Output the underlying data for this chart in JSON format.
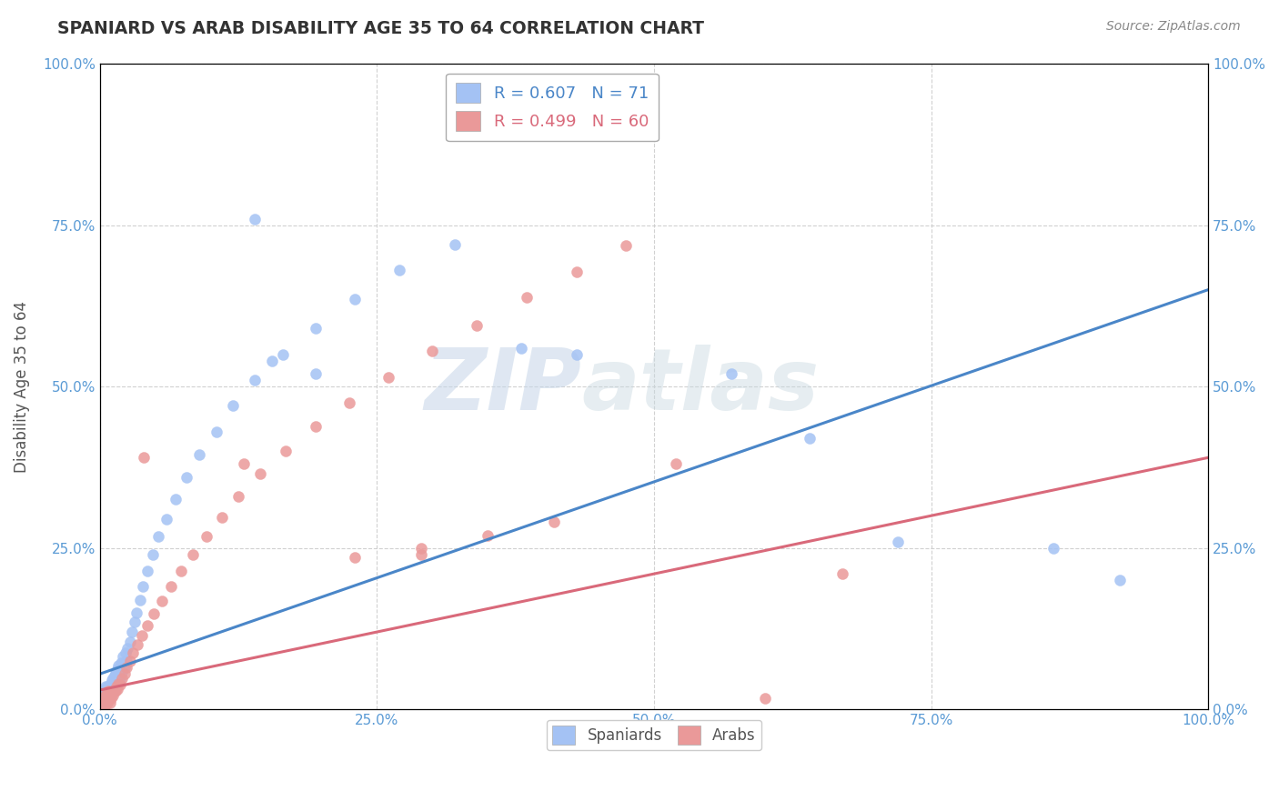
{
  "title": "SPANIARD VS ARAB DISABILITY AGE 35 TO 64 CORRELATION CHART",
  "source": "Source: ZipAtlas.com",
  "ylabel": "Disability Age 35 to 64",
  "xlim": [
    0,
    1.0
  ],
  "ylim": [
    0,
    1.0
  ],
  "xticks": [
    0.0,
    0.25,
    0.5,
    0.75,
    1.0
  ],
  "yticks": [
    0.0,
    0.25,
    0.5,
    0.75,
    1.0
  ],
  "xticklabels": [
    "0.0%",
    "25.0%",
    "50.0%",
    "75.0%",
    "100.0%"
  ],
  "yticklabels": [
    "0.0%",
    "25.0%",
    "50.0%",
    "75.0%",
    "100.0%"
  ],
  "spaniards_color": "#a4c2f4",
  "arabs_color": "#ea9999",
  "spaniards_line_color": "#4a86c8",
  "arabs_line_color": "#d9697a",
  "R_spaniards": 0.607,
  "N_spaniards": 71,
  "R_arabs": 0.499,
  "N_arabs": 60,
  "title_color": "#333333",
  "axis_label_color": "#555555",
  "tick_color": "#5b9bd5",
  "grid_color": "#cccccc",
  "background_color": "#ffffff",
  "watermark_color": "#d0dce8",
  "legend_line_color": "#4a86c8",
  "legend_line2_color": "#d9697a",
  "sp_x": [
    0.002,
    0.003,
    0.003,
    0.004,
    0.004,
    0.005,
    0.005,
    0.005,
    0.006,
    0.006,
    0.007,
    0.007,
    0.008,
    0.008,
    0.009,
    0.009,
    0.01,
    0.01,
    0.011,
    0.011,
    0.012,
    0.012,
    0.013,
    0.013,
    0.014,
    0.014,
    0.015,
    0.015,
    0.016,
    0.016,
    0.017,
    0.017,
    0.018,
    0.019,
    0.02,
    0.021,
    0.022,
    0.023,
    0.024,
    0.025,
    0.027,
    0.029,
    0.031,
    0.033,
    0.036,
    0.039,
    0.043,
    0.048,
    0.053,
    0.06,
    0.068,
    0.078,
    0.09,
    0.105,
    0.12,
    0.14,
    0.165,
    0.195,
    0.23,
    0.27,
    0.14,
    0.32,
    0.38,
    0.43,
    0.57,
    0.64,
    0.72,
    0.86,
    0.92,
    0.155,
    0.195
  ],
  "sp_y": [
    0.015,
    0.022,
    0.01,
    0.018,
    0.03,
    0.012,
    0.025,
    0.035,
    0.015,
    0.028,
    0.02,
    0.035,
    0.018,
    0.032,
    0.022,
    0.038,
    0.025,
    0.04,
    0.028,
    0.045,
    0.03,
    0.048,
    0.033,
    0.052,
    0.035,
    0.055,
    0.038,
    0.058,
    0.042,
    0.062,
    0.045,
    0.068,
    0.048,
    0.072,
    0.058,
    0.082,
    0.065,
    0.088,
    0.075,
    0.095,
    0.105,
    0.12,
    0.135,
    0.15,
    0.17,
    0.19,
    0.215,
    0.24,
    0.268,
    0.295,
    0.325,
    0.36,
    0.395,
    0.43,
    0.47,
    0.51,
    0.55,
    0.59,
    0.635,
    0.68,
    0.76,
    0.72,
    0.56,
    0.55,
    0.52,
    0.42,
    0.26,
    0.25,
    0.2,
    0.54,
    0.52
  ],
  "ar_x": [
    0.002,
    0.003,
    0.003,
    0.004,
    0.004,
    0.005,
    0.005,
    0.006,
    0.006,
    0.007,
    0.007,
    0.008,
    0.008,
    0.009,
    0.009,
    0.01,
    0.011,
    0.012,
    0.013,
    0.014,
    0.015,
    0.016,
    0.017,
    0.018,
    0.02,
    0.022,
    0.024,
    0.027,
    0.03,
    0.034,
    0.038,
    0.043,
    0.049,
    0.056,
    0.064,
    0.073,
    0.084,
    0.096,
    0.11,
    0.125,
    0.145,
    0.168,
    0.195,
    0.225,
    0.26,
    0.3,
    0.34,
    0.385,
    0.43,
    0.475,
    0.52,
    0.13,
    0.23,
    0.29,
    0.35,
    0.41,
    0.29,
    0.6,
    0.67,
    0.04
  ],
  "ar_y": [
    0.008,
    0.015,
    0.005,
    0.012,
    0.02,
    0.008,
    0.018,
    0.012,
    0.025,
    0.01,
    0.022,
    0.015,
    0.028,
    0.01,
    0.02,
    0.018,
    0.025,
    0.022,
    0.03,
    0.028,
    0.035,
    0.032,
    0.04,
    0.038,
    0.048,
    0.055,
    0.065,
    0.075,
    0.088,
    0.1,
    0.115,
    0.13,
    0.148,
    0.168,
    0.19,
    0.215,
    0.24,
    0.268,
    0.298,
    0.33,
    0.365,
    0.4,
    0.438,
    0.475,
    0.515,
    0.555,
    0.595,
    0.638,
    0.678,
    0.718,
    0.38,
    0.38,
    0.235,
    0.25,
    0.27,
    0.29,
    0.24,
    0.018,
    0.21,
    0.39
  ],
  "sp_line_x0": 0.0,
  "sp_line_x1": 1.0,
  "sp_line_y0": 0.055,
  "sp_line_y1": 0.65,
  "ar_line_x0": 0.0,
  "ar_line_x1": 1.0,
  "ar_line_y0": 0.03,
  "ar_line_y1": 0.39
}
